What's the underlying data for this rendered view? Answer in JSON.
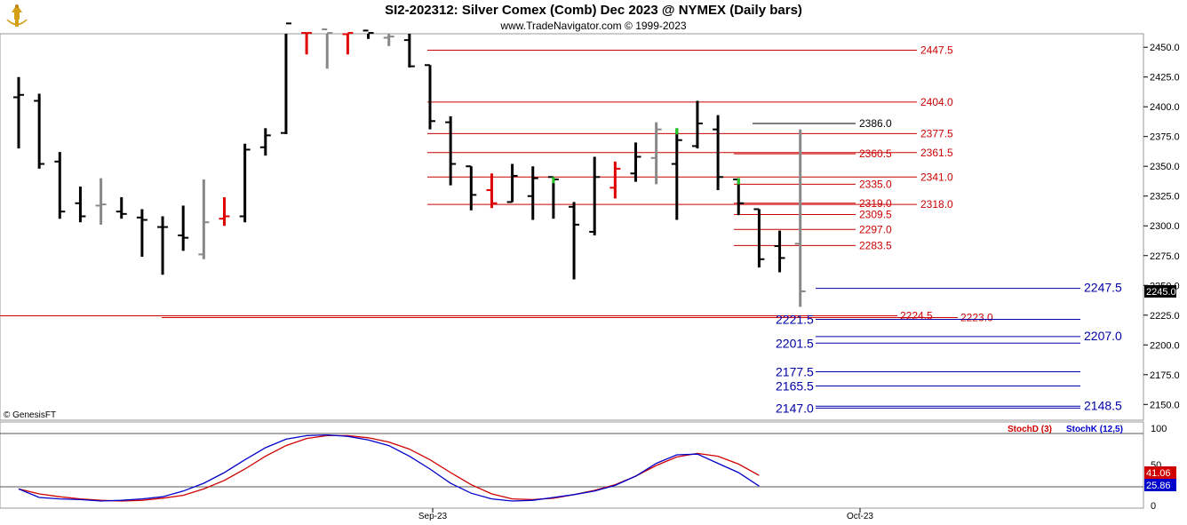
{
  "header": {
    "title": "SI2-202312:  Silver Comex (Comb) Dec 2023 @ NYMEX  (Daily bars)",
    "subtitle": "www.TradeNavigator.com © 1999-2023"
  },
  "credit": "© GenesisFT",
  "colors": {
    "up": "#000000",
    "down_red": "#e00000",
    "neutral": "#888888",
    "highlight": "#22cc22",
    "level_red": "#cc0000",
    "level_blue": "#0000aa",
    "stochD": "#d00000",
    "stochK": "#0000cc"
  },
  "chart_data": [
    {
      "type": "ohlc",
      "title": "SI2-202312:  Silver Comex (Comb) Dec 2023 @ NYMEX  (Daily bars)",
      "price_range": [
        2135,
        2465
      ],
      "price_ticks": [
        "2450.0",
        "2425.0",
        "2400.0",
        "2375.0",
        "2350.0",
        "2325.0",
        "2300.0",
        "2275.0",
        "2250.0",
        "2225.0",
        "2200.0",
        "2175.0",
        "2150.0"
      ],
      "x_labels": [
        "Sep-23",
        "Oct-23"
      ],
      "last_price": "2245.0",
      "bars": [
        {
          "o": 2408,
          "h": 2425,
          "l": 2365,
          "c": 2410,
          "col": "b"
        },
        {
          "o": 2405,
          "h": 2411,
          "l": 2348,
          "c": 2352,
          "col": "b"
        },
        {
          "o": 2354,
          "h": 2362,
          "l": 2306,
          "c": 2312,
          "col": "b"
        },
        {
          "o": 2319,
          "h": 2333,
          "l": 2303,
          "c": 2308,
          "col": "b"
        },
        {
          "o": 2317,
          "h": 2340,
          "l": 2301,
          "c": 2318,
          "col": "g"
        },
        {
          "o": 2312,
          "h": 2324,
          "l": 2306,
          "c": 2310,
          "col": "b"
        },
        {
          "o": 2307,
          "h": 2314,
          "l": 2274,
          "c": 2305,
          "col": "b"
        },
        {
          "o": 2299,
          "h": 2308,
          "l": 2259,
          "c": 2299,
          "col": "b"
        },
        {
          "o": 2292,
          "h": 2317,
          "l": 2279,
          "c": 2290,
          "col": "b"
        },
        {
          "o": 2276,
          "h": 2339,
          "l": 2272,
          "c": 2303,
          "col": "g"
        },
        {
          "o": 2306,
          "h": 2324,
          "l": 2300,
          "c": 2308,
          "col": "r"
        },
        {
          "o": 2308,
          "h": 2369,
          "l": 2303,
          "c": 2364,
          "col": "b"
        },
        {
          "o": 2366,
          "h": 2382,
          "l": 2359,
          "c": 2376,
          "col": "b"
        },
        {
          "o": 2378,
          "h": 2470,
          "l": 2377,
          "c": 2470,
          "col": "b"
        },
        {
          "o": 2462,
          "h": 2470,
          "l": 2444,
          "c": 2462,
          "col": "r"
        },
        {
          "o": 2465,
          "h": 2470,
          "l": 2432,
          "c": 2462,
          "col": "g"
        },
        {
          "o": 2461,
          "h": 2470,
          "l": 2444,
          "c": 2462,
          "col": "r"
        },
        {
          "o": 2464,
          "h": 2470,
          "l": 2457,
          "c": 2462,
          "col": "b"
        },
        {
          "o": 2458,
          "h": 2470,
          "l": 2451,
          "c": 2459,
          "col": "g"
        },
        {
          "o": 2456,
          "h": 2464,
          "l": 2433,
          "c": 2434,
          "col": "b"
        },
        {
          "o": 2435,
          "h": 2435,
          "l": 2381,
          "c": 2388,
          "col": "b"
        },
        {
          "o": 2387,
          "h": 2392,
          "l": 2334,
          "c": 2352,
          "col": "b"
        },
        {
          "o": 2350,
          "h": 2350,
          "l": 2313,
          "c": 2326,
          "col": "b"
        },
        {
          "o": 2330,
          "h": 2344,
          "l": 2315,
          "c": 2319,
          "col": "r"
        },
        {
          "o": 2320,
          "h": 2352,
          "l": 2320,
          "c": 2342,
          "col": "b"
        },
        {
          "o": 2325,
          "h": 2350,
          "l": 2305,
          "c": 2340,
          "col": "b"
        },
        {
          "o": 2341,
          "h": 2341,
          "l": 2306,
          "c": 2339,
          "col": "hl"
        },
        {
          "o": 2316,
          "h": 2320,
          "l": 2255,
          "c": 2301,
          "col": "b"
        },
        {
          "o": 2295,
          "h": 2358,
          "l": 2292,
          "c": 2341,
          "col": "b"
        },
        {
          "o": 2332,
          "h": 2354,
          "l": 2323,
          "c": 2348,
          "col": "r"
        },
        {
          "o": 2344,
          "h": 2370,
          "l": 2337,
          "c": 2358,
          "col": "b"
        },
        {
          "o": 2357,
          "h": 2387,
          "l": 2335,
          "c": 2381,
          "col": "g"
        },
        {
          "o": 2352,
          "h": 2382,
          "l": 2305,
          "c": 2372,
          "col": "hl"
        },
        {
          "o": 2367,
          "h": 2405,
          "l": 2365,
          "c": 2386,
          "col": "b"
        },
        {
          "o": 2381,
          "h": 2393,
          "l": 2330,
          "c": 2341,
          "col": "b"
        },
        {
          "o": 2339,
          "h": 2340,
          "l": 2309,
          "c": 2319,
          "col": "hl"
        },
        {
          "o": 2314,
          "h": 2314,
          "l": 2265,
          "c": 2272,
          "col": "b"
        },
        {
          "o": 2283,
          "h": 2296,
          "l": 2261,
          "c": 2273,
          "col": "b"
        },
        {
          "o": 2285,
          "h": 2381,
          "l": 2232,
          "c": 2245,
          "col": "g"
        }
      ],
      "levels": [
        {
          "label": "2447.5",
          "price": 2447.5,
          "side": "red"
        },
        {
          "label": "2404.0",
          "price": 2404.0,
          "side": "red"
        },
        {
          "label": "2386.0",
          "price": 2386.0,
          "side": "black"
        },
        {
          "label": "2377.5",
          "price": 2377.5,
          "side": "red"
        },
        {
          "label": "2361.5",
          "price": 2361.5,
          "side": "red"
        },
        {
          "label": "2360.5",
          "price": 2360.5,
          "side": "red_mid"
        },
        {
          "label": "2341.0",
          "price": 2341.0,
          "side": "red"
        },
        {
          "label": "2335.0",
          "price": 2335.0,
          "side": "red_mid"
        },
        {
          "label": "2318.0",
          "price": 2318.0,
          "side": "red"
        },
        {
          "label": "2319.0",
          "price": 2319.0,
          "side": "red_mid"
        },
        {
          "label": "2309.5",
          "price": 2309.5,
          "side": "red_mid"
        },
        {
          "label": "2297.0",
          "price": 2297.0,
          "side": "red_mid"
        },
        {
          "label": "2283.5",
          "price": 2283.5,
          "side": "red_mid"
        },
        {
          "label": "2247.5",
          "price": 2247.5,
          "side": "blue_right"
        },
        {
          "label": "2224.5",
          "price": 2224.5,
          "side": "red_low"
        },
        {
          "label": "2223.0",
          "price": 2223.0,
          "side": "red_low2"
        },
        {
          "label": "2221.5",
          "price": 2221.5,
          "side": "blue_left"
        },
        {
          "label": "2207.0",
          "price": 2207.0,
          "side": "blue_right"
        },
        {
          "label": "2201.5",
          "price": 2201.5,
          "side": "blue_left"
        },
        {
          "label": "2177.5",
          "price": 2177.5,
          "side": "blue_left"
        },
        {
          "label": "2165.5",
          "price": 2165.5,
          "side": "blue_left"
        },
        {
          "label": "2148.5",
          "price": 2148.5,
          "side": "blue_right"
        },
        {
          "label": "2147.0",
          "price": 2147.0,
          "side": "blue_left"
        }
      ]
    },
    {
      "type": "line",
      "title": "",
      "y_range": [
        0,
        100
      ],
      "y_ticks": [
        "100",
        "50",
        "0"
      ],
      "series": [
        {
          "name": "StochD (3)",
          "color": "#d00000",
          "last": "41.06",
          "values": [
            22,
            15,
            11,
            8,
            6,
            5,
            6,
            9,
            13,
            22,
            34,
            50,
            68,
            83,
            93,
            97,
            97,
            94,
            88,
            78,
            63,
            45,
            28,
            15,
            8,
            7,
            9,
            14,
            20,
            28,
            40,
            55,
            67,
            72,
            68,
            57,
            41
          ]
        },
        {
          "name": "StochK (12,5)",
          "color": "#0000cc",
          "last": "25.86",
          "values": [
            22,
            10,
            8,
            7,
            5,
            6,
            8,
            11,
            19,
            30,
            45,
            63,
            80,
            92,
            97,
            98,
            96,
            91,
            83,
            68,
            50,
            30,
            16,
            8,
            5,
            6,
            10,
            14,
            19,
            27,
            40,
            58,
            70,
            71,
            58,
            45,
            26
          ]
        }
      ]
    }
  ]
}
